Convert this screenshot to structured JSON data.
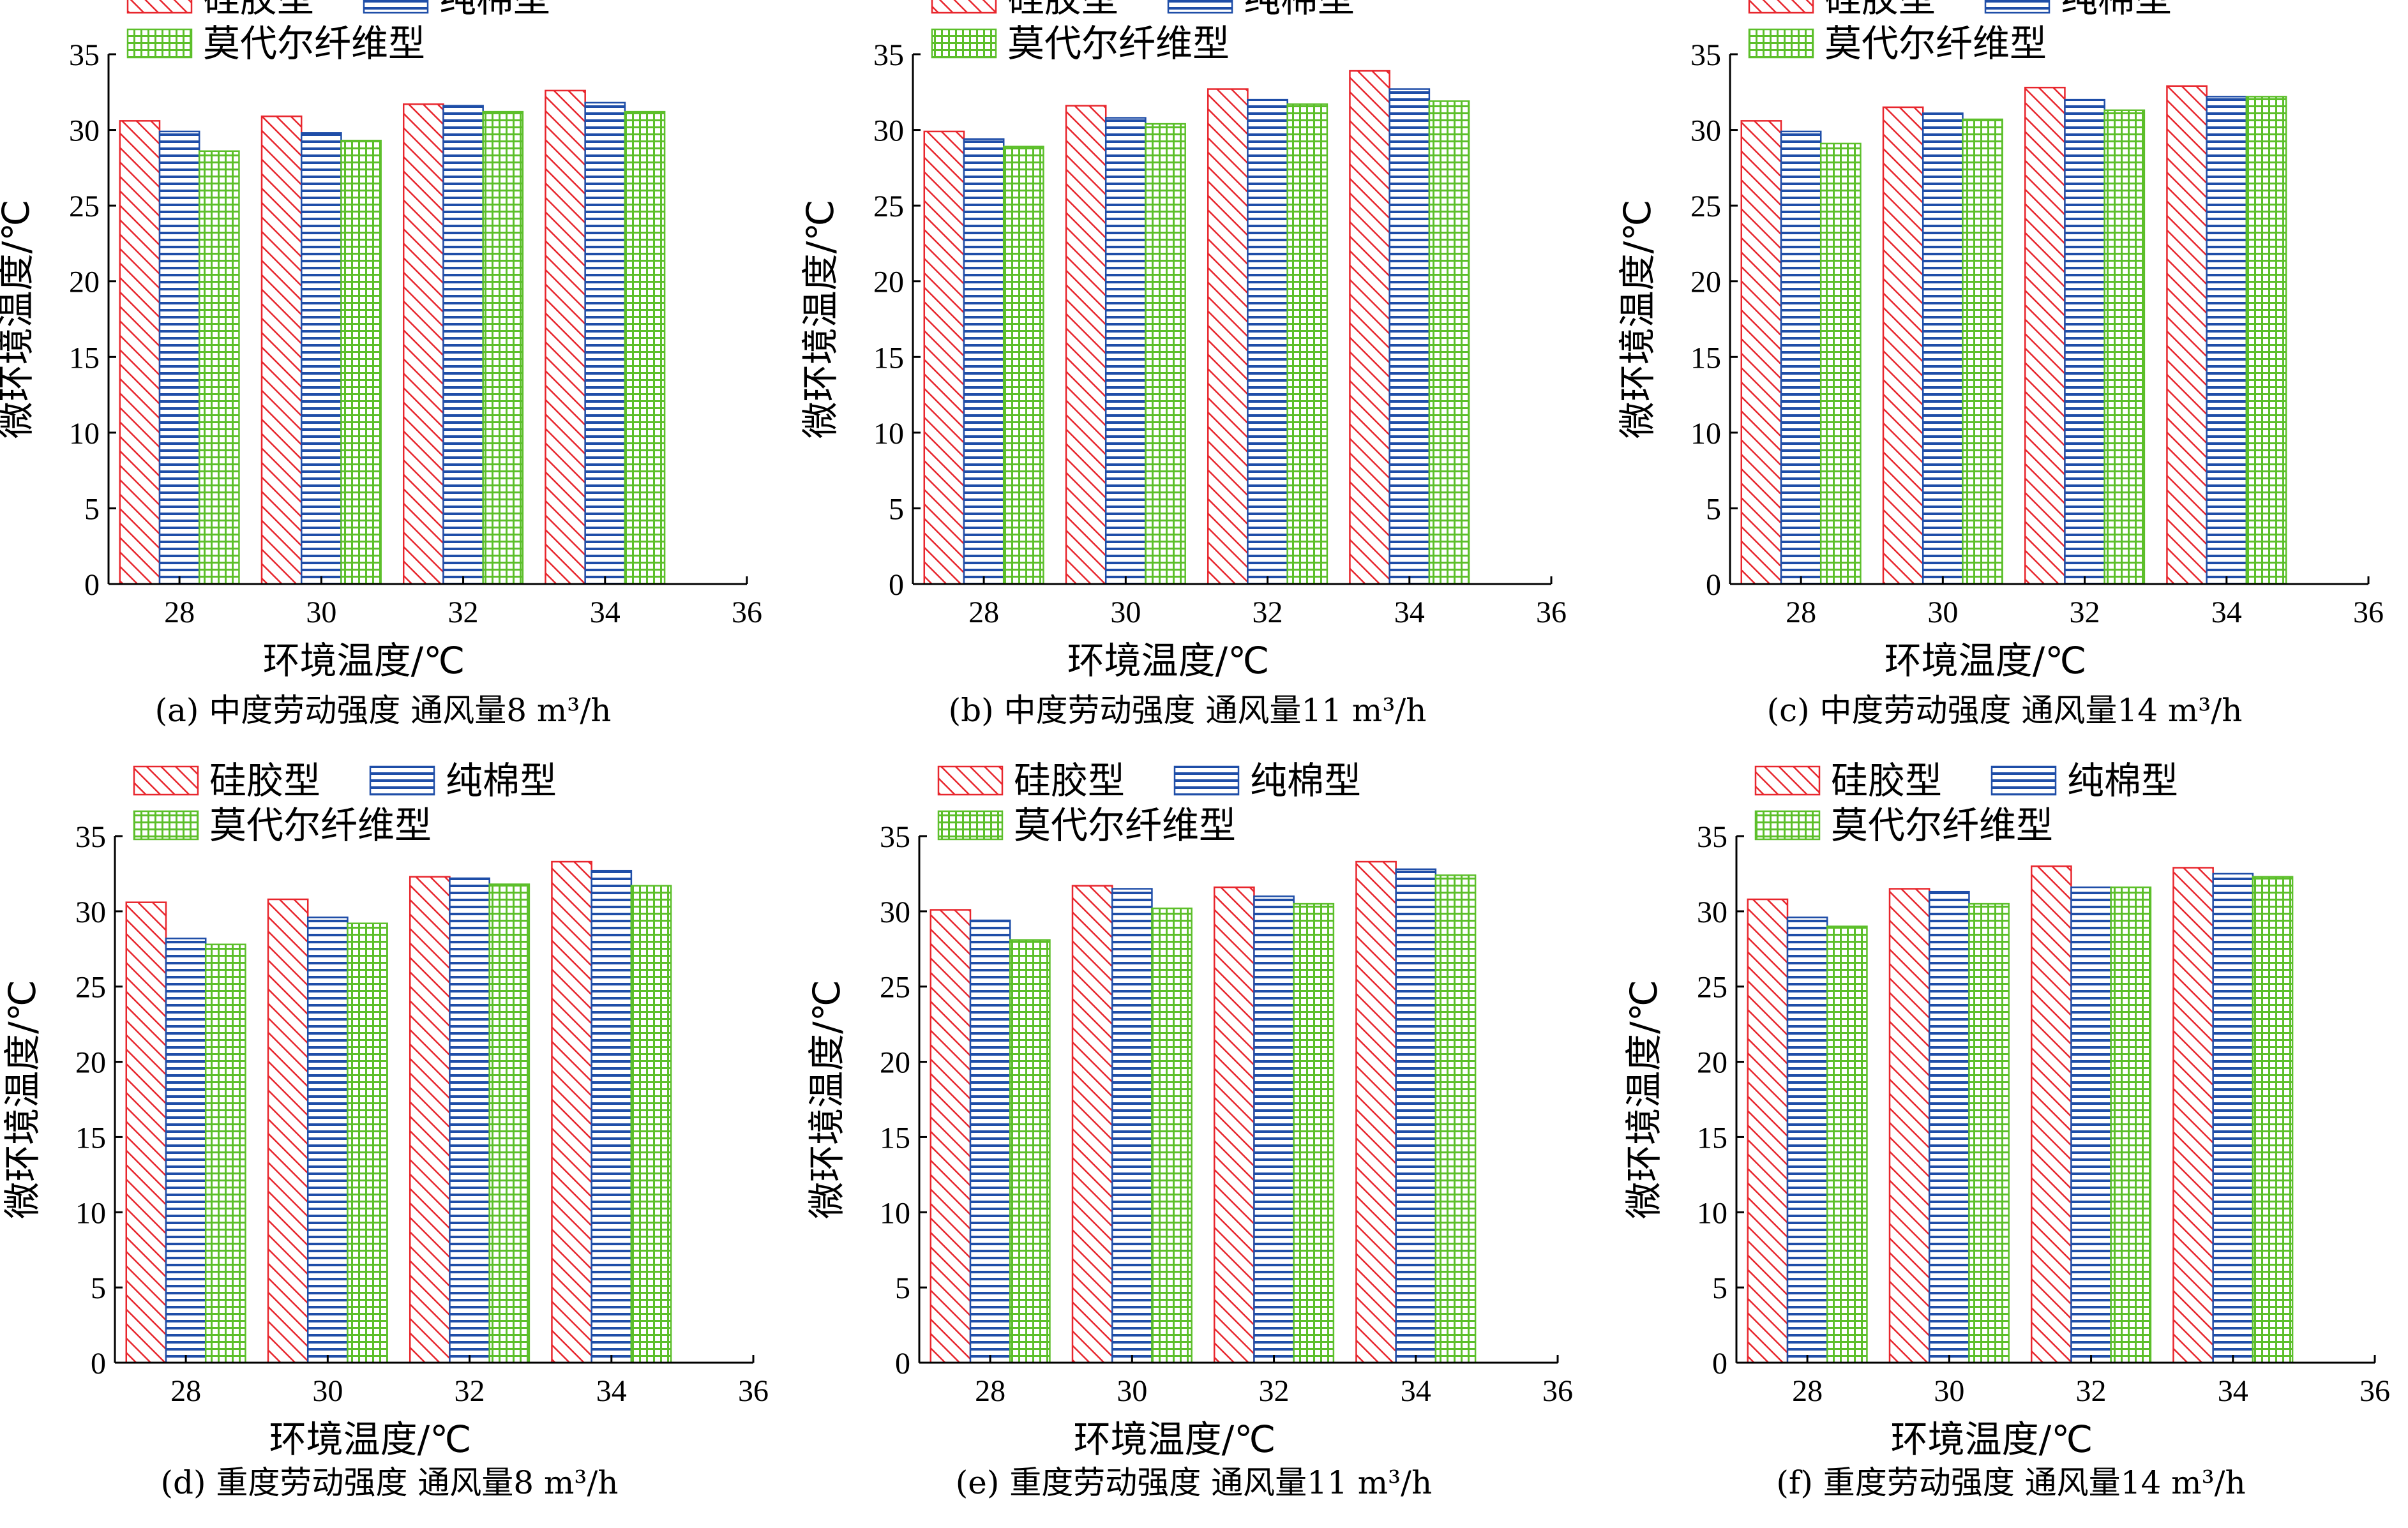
{
  "series_styles": [
    {
      "key": "silica",
      "color": "#e8262d",
      "pattern": "diagonal"
    },
    {
      "key": "cotton",
      "color": "#1f4ea8",
      "pattern": "horizontal"
    },
    {
      "key": "modal",
      "color": "#5cbf2a",
      "pattern": "grid"
    }
  ],
  "chart_data": [
    {
      "type": "bar",
      "caption": "(a) 中度劳动强度 通风量8 m³/h",
      "xlabel": "环境温度/℃",
      "ylabel": "微环境温度/℃",
      "xlim": [
        27,
        36
      ],
      "ylim": [
        0,
        35
      ],
      "xticks": [
        "28",
        "30",
        "32",
        "34",
        "36"
      ],
      "yticks": [
        "0",
        "5",
        "10",
        "15",
        "20",
        "25",
        "30",
        "35"
      ],
      "categories": [
        "28",
        "30",
        "32",
        "34"
      ],
      "legend": {
        "placement": "top-left"
      },
      "series": [
        {
          "name": "硅胶型",
          "values": [
            30.6,
            30.9,
            31.7,
            32.6
          ]
        },
        {
          "name": "纯棉型",
          "values": [
            29.9,
            29.8,
            31.6,
            31.8
          ]
        },
        {
          "name": "莫代尔纤维型",
          "values": [
            28.6,
            29.3,
            31.2,
            31.2
          ]
        }
      ]
    },
    {
      "type": "bar",
      "caption": "(b) 中度劳动强度 通风量11 m³/h",
      "xlabel": "环境温度/℃",
      "ylabel": "微环境温度/℃",
      "xlim": [
        27,
        36
      ],
      "ylim": [
        0,
        35
      ],
      "xticks": [
        "28",
        "30",
        "32",
        "34",
        "36"
      ],
      "yticks": [
        "0",
        "5",
        "10",
        "15",
        "20",
        "25",
        "30",
        "35"
      ],
      "categories": [
        "28",
        "30",
        "32",
        "34"
      ],
      "legend": {
        "placement": "top-left"
      },
      "series": [
        {
          "name": "硅胶型",
          "values": [
            29.9,
            31.6,
            32.7,
            33.9
          ]
        },
        {
          "name": "纯棉型",
          "values": [
            29.4,
            30.8,
            32.0,
            32.7
          ]
        },
        {
          "name": "莫代尔纤维型",
          "values": [
            28.9,
            30.4,
            31.7,
            31.9
          ]
        }
      ]
    },
    {
      "type": "bar",
      "caption": "(c) 中度劳动强度 通风量14 m³/h",
      "xlabel": "环境温度/℃",
      "ylabel": "微环境温度/℃",
      "xlim": [
        27,
        36
      ],
      "ylim": [
        0,
        35
      ],
      "xticks": [
        "28",
        "30",
        "32",
        "34",
        "36"
      ],
      "yticks": [
        "0",
        "5",
        "10",
        "15",
        "20",
        "25",
        "30",
        "35"
      ],
      "categories": [
        "28",
        "30",
        "32",
        "34"
      ],
      "legend": {
        "placement": "top-left"
      },
      "series": [
        {
          "name": "硅胶型",
          "values": [
            30.6,
            31.5,
            32.8,
            32.9
          ]
        },
        {
          "name": "纯棉型",
          "values": [
            29.9,
            31.1,
            32.0,
            32.2
          ]
        },
        {
          "name": "莫代尔纤维型",
          "values": [
            29.1,
            30.7,
            31.3,
            32.2
          ]
        }
      ]
    },
    {
      "type": "bar",
      "caption": "(d) 重度劳动强度  通风量8 m³/h",
      "xlabel": "环境温度/℃",
      "ylabel": "微环境温度/℃",
      "xlim": [
        27,
        36
      ],
      "ylim": [
        0,
        35
      ],
      "xticks": [
        "28",
        "30",
        "32",
        "34",
        "36"
      ],
      "yticks": [
        "0",
        "5",
        "10",
        "15",
        "20",
        "25",
        "30",
        "35"
      ],
      "categories": [
        "28",
        "30",
        "32",
        "34"
      ],
      "legend": {
        "placement": "top-left"
      },
      "series": [
        {
          "name": "硅胶型",
          "values": [
            30.6,
            30.8,
            32.3,
            33.3
          ]
        },
        {
          "name": "纯棉型",
          "values": [
            28.2,
            29.6,
            32.2,
            32.7
          ]
        },
        {
          "name": "莫代尔纤维型",
          "values": [
            27.8,
            29.2,
            31.8,
            31.7
          ]
        }
      ]
    },
    {
      "type": "bar",
      "caption": "(e) 重度劳动强度  通风量11 m³/h",
      "xlabel": "环境温度/℃",
      "ylabel": "微环境温度/℃",
      "xlim": [
        27,
        36
      ],
      "ylim": [
        0,
        35
      ],
      "xticks": [
        "28",
        "30",
        "32",
        "34",
        "36"
      ],
      "yticks": [
        "0",
        "5",
        "10",
        "15",
        "20",
        "25",
        "30",
        "35"
      ],
      "categories": [
        "28",
        "30",
        "32",
        "34"
      ],
      "legend": {
        "placement": "top-left"
      },
      "series": [
        {
          "name": "硅胶型",
          "values": [
            30.1,
            31.7,
            31.6,
            33.3
          ]
        },
        {
          "name": "纯棉型",
          "values": [
            29.4,
            31.5,
            31.0,
            32.8
          ]
        },
        {
          "name": "莫代尔纤维型",
          "values": [
            28.1,
            30.2,
            30.5,
            32.4
          ]
        }
      ]
    },
    {
      "type": "bar",
      "caption": "(f) 重度劳动强度  通风量14 m³/h",
      "xlabel": "环境温度/℃",
      "ylabel": "微环境温度/℃",
      "xlim": [
        27,
        36
      ],
      "ylim": [
        0,
        35
      ],
      "xticks": [
        "28",
        "30",
        "32",
        "34",
        "36"
      ],
      "yticks": [
        "0",
        "5",
        "10",
        "15",
        "20",
        "25",
        "30",
        "35"
      ],
      "categories": [
        "28",
        "30",
        "32",
        "34"
      ],
      "legend": {
        "placement": "top-left"
      },
      "series": [
        {
          "name": "硅胶型",
          "values": [
            30.8,
            31.5,
            33.0,
            32.9
          ]
        },
        {
          "name": "纯棉型",
          "values": [
            29.6,
            31.3,
            31.6,
            32.5
          ]
        },
        {
          "name": "莫代尔纤维型",
          "values": [
            29.0,
            30.5,
            31.6,
            32.3
          ]
        }
      ]
    }
  ]
}
